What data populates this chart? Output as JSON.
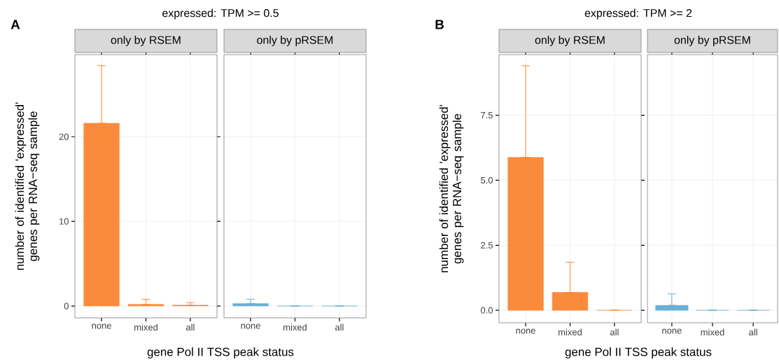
{
  "chart_data": [
    {
      "type": "bar",
      "title": "expressed: TPM >= 0.5",
      "subtitle": "only by RSEM",
      "xlabel": "gene Pol II TSS peak status",
      "ylabel": "number of identified 'expressed' genes per RNA−seq sample",
      "annotations": [
        "A"
      ],
      "categories": [
        "none",
        "mixed",
        "all"
      ],
      "values": [
        21.6,
        0.2,
        0.1
      ],
      "errors": [
        [
          21.6,
          28.4
        ],
        [
          0.2,
          0.8
        ],
        [
          0.1,
          0.4
        ]
      ],
      "color": "#fb8b3c",
      "ylim": [
        -1.4,
        29.7
      ],
      "yticks": [
        0,
        10,
        20
      ],
      "grid": true
    },
    {
      "type": "bar",
      "subtitle": "only by pRSEM",
      "categories": [
        "none",
        "mixed",
        "all"
      ],
      "values": [
        0.3,
        0,
        0
      ],
      "errors": [
        [
          0.3,
          0.8
        ],
        [
          0,
          0
        ],
        [
          0,
          0
        ]
      ],
      "color": "#6baed6",
      "ylim": [
        -1.4,
        29.7
      ],
      "yticks": [
        0,
        10,
        20
      ],
      "grid": true,
      "tick_labels": "x"
    },
    {
      "type": "bar",
      "title": "expressed: TPM >= 2",
      "subtitle": "only by RSEM",
      "xlabel": "gene Pol II TSS peak status",
      "ylabel": "number of identified 'expressed' genes per RNA−seq sample",
      "annotations": [
        "B"
      ],
      "categories": [
        "none",
        "mixed",
        "all"
      ],
      "values": [
        5.88,
        0.69,
        0
      ],
      "errors": [
        [
          5.88,
          9.4
        ],
        [
          0.69,
          1.85
        ],
        [
          0,
          0
        ]
      ],
      "color": "#fb8b3c",
      "ylim": [
        -0.48,
        9.83
      ],
      "yticks": [
        {
          "value": 0,
          "label": "0.0"
        },
        2.5,
        {
          "value": 5,
          "label": "5.0"
        },
        7.5
      ],
      "grid": true
    },
    {
      "type": "bar",
      "subtitle": "only by pRSEM",
      "categories": [
        "none",
        "mixed",
        "all"
      ],
      "values": [
        0.19,
        0,
        0
      ],
      "errors": [
        [
          0.19,
          0.63
        ],
        [
          0,
          0
        ],
        [
          0,
          0
        ]
      ],
      "color": "#6baed6",
      "ylim": [
        -0.48,
        9.83
      ],
      "yticks": [
        0,
        2.5,
        5,
        7.5
      ],
      "grid": true,
      "tick_labels": "x"
    }
  ]
}
